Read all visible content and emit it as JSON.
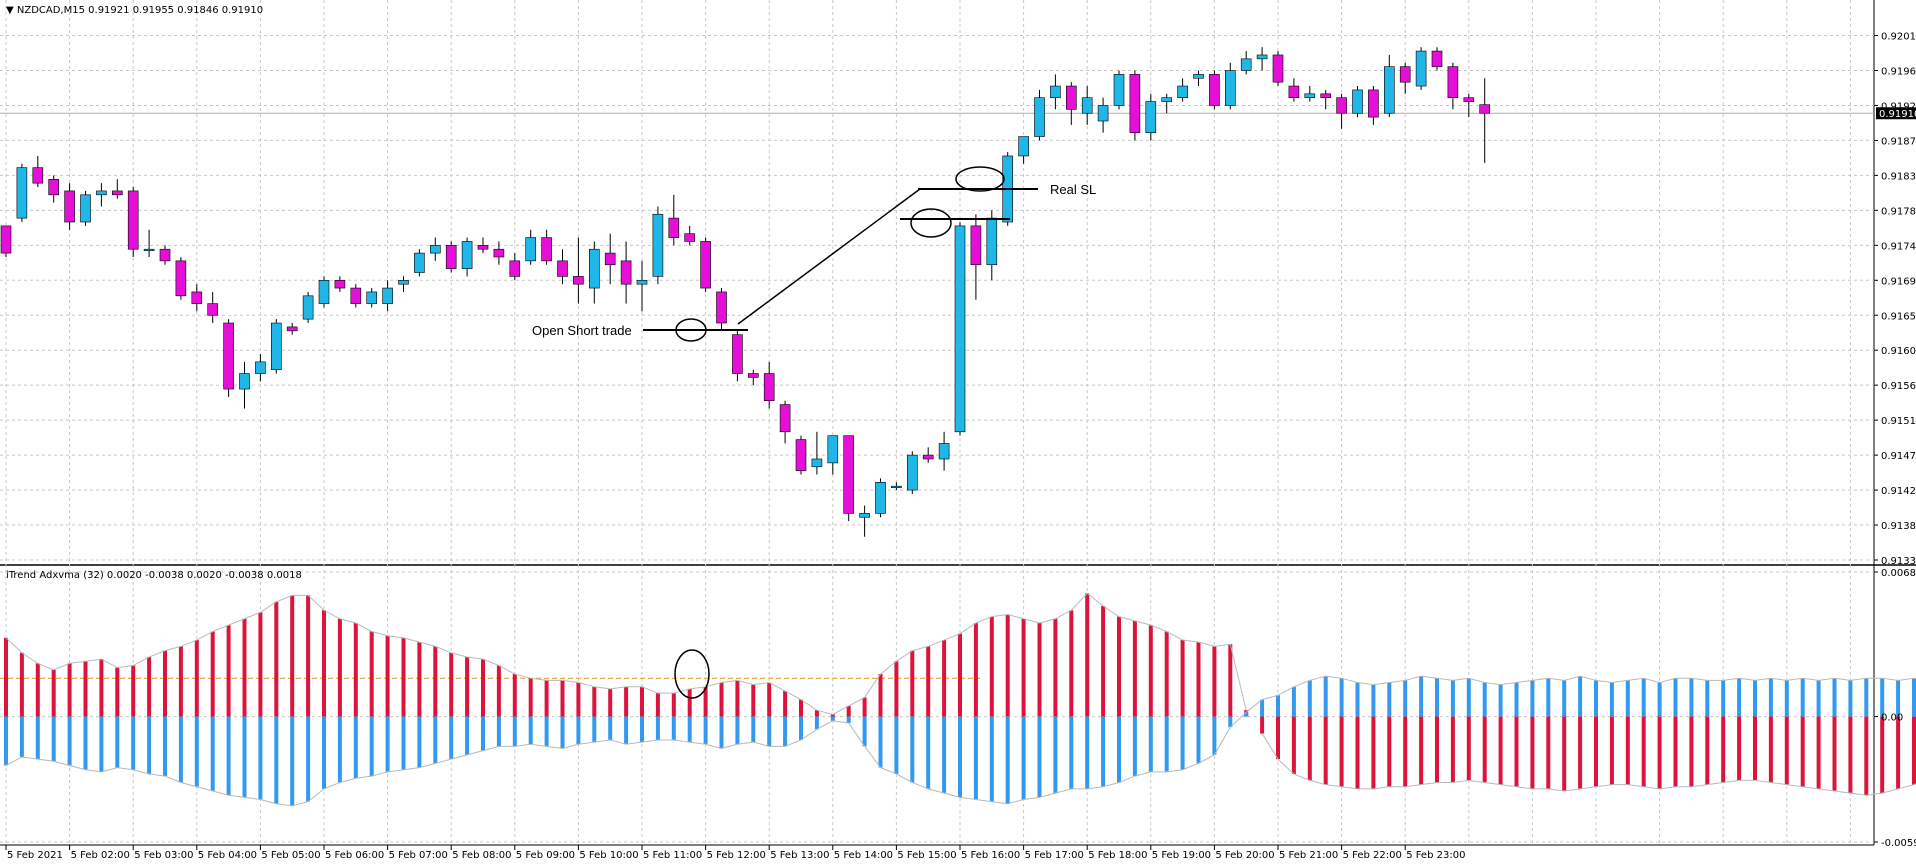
{
  "chart_data": [
    {
      "type": "candlestick",
      "title": "NZDCAD,M15",
      "ohlc_header": "0.91921 0.91955 0.91846 0.91910",
      "ylim": [
        0.91335,
        0.9203
      ],
      "y_ticks": [
        "0.92010",
        "0.91965",
        "0.91920",
        "0.91875",
        "0.91830",
        "0.91785",
        "0.91740",
        "0.91695",
        "0.91650",
        "0.91605",
        "0.91560",
        "0.91515",
        "0.91470",
        "0.91425",
        "0.91380",
        "0.91335"
      ],
      "current_price_label": "0.91910",
      "current_price": 0.9191,
      "x_tick_labels": [
        "5 Feb 2021",
        "5 Feb 02:00",
        "5 Feb 03:00",
        "5 Feb 04:00",
        "5 Feb 05:00",
        "5 Feb 06:00",
        "5 Feb 07:00",
        "5 Feb 08:00",
        "5 Feb 09:00",
        "5 Feb 10:00",
        "5 Feb 11:00",
        "5 Feb 12:00",
        "5 Feb 13:00",
        "5 Feb 14:00",
        "5 Feb 15:00",
        "5 Feb 16:00",
        "5 Feb 17:00",
        "5 Feb 18:00",
        "5 Feb 19:00",
        "5 Feb 20:00",
        "5 Feb 21:00",
        "5 Feb 22:00",
        "5 Feb 23:00"
      ],
      "candles": [
        [
          0.91765,
          0.91765,
          0.91725,
          0.9173
        ],
        [
          0.91775,
          0.91845,
          0.9177,
          0.9184
        ],
        [
          0.9184,
          0.91855,
          0.91815,
          0.9182
        ],
        [
          0.91825,
          0.9183,
          0.91795,
          0.91805
        ],
        [
          0.9181,
          0.9182,
          0.9176,
          0.9177
        ],
        [
          0.9177,
          0.9181,
          0.91765,
          0.91805
        ],
        [
          0.91805,
          0.9182,
          0.9179,
          0.9181
        ],
        [
          0.9181,
          0.91825,
          0.918,
          0.91805
        ],
        [
          0.9181,
          0.91815,
          0.91725,
          0.91735
        ],
        [
          0.91735,
          0.9176,
          0.91725,
          0.91735
        ],
        [
          0.91735,
          0.9174,
          0.91715,
          0.9172
        ],
        [
          0.9172,
          0.91725,
          0.9167,
          0.91675
        ],
        [
          0.9168,
          0.9169,
          0.91655,
          0.91665
        ],
        [
          0.91665,
          0.9168,
          0.9164,
          0.9165
        ],
        [
          0.9164,
          0.91645,
          0.91545,
          0.91555
        ],
        [
          0.91555,
          0.9159,
          0.9153,
          0.91575
        ],
        [
          0.91575,
          0.916,
          0.91565,
          0.9159
        ],
        [
          0.9158,
          0.91645,
          0.91575,
          0.9164
        ],
        [
          0.91635,
          0.9164,
          0.91625,
          0.9163
        ],
        [
          0.91645,
          0.9168,
          0.9164,
          0.91675
        ],
        [
          0.91665,
          0.917,
          0.9166,
          0.91695
        ],
        [
          0.91695,
          0.917,
          0.9168,
          0.91685
        ],
        [
          0.91685,
          0.9169,
          0.9166,
          0.91665
        ],
        [
          0.91665,
          0.91685,
          0.9166,
          0.9168
        ],
        [
          0.91665,
          0.91695,
          0.91655,
          0.91685
        ],
        [
          0.9169,
          0.917,
          0.9168,
          0.91695
        ],
        [
          0.91705,
          0.91735,
          0.917,
          0.9173
        ],
        [
          0.9173,
          0.9175,
          0.9172,
          0.9174
        ],
        [
          0.9174,
          0.91745,
          0.91705,
          0.9171
        ],
        [
          0.9171,
          0.9175,
          0.917,
          0.91745
        ],
        [
          0.9174,
          0.9175,
          0.9173,
          0.91735
        ],
        [
          0.91735,
          0.91745,
          0.91715,
          0.91725
        ],
        [
          0.9172,
          0.9173,
          0.91695,
          0.917
        ],
        [
          0.9172,
          0.9176,
          0.91715,
          0.9175
        ],
        [
          0.9175,
          0.9176,
          0.91715,
          0.9172
        ],
        [
          0.9172,
          0.91735,
          0.9169,
          0.917
        ],
        [
          0.917,
          0.9175,
          0.91665,
          0.9169
        ],
        [
          0.91685,
          0.91745,
          0.91665,
          0.91735
        ],
        [
          0.9173,
          0.91755,
          0.9169,
          0.91715
        ],
        [
          0.9172,
          0.91745,
          0.91665,
          0.9169
        ],
        [
          0.9169,
          0.9172,
          0.91655,
          0.91695
        ],
        [
          0.917,
          0.9179,
          0.9169,
          0.9178
        ],
        [
          0.91775,
          0.91805,
          0.9174,
          0.9175
        ],
        [
          0.91755,
          0.91765,
          0.9174,
          0.91745
        ],
        [
          0.91745,
          0.9175,
          0.9168,
          0.91685
        ],
        [
          0.9168,
          0.91685,
          0.9163,
          0.9164
        ],
        [
          0.91625,
          0.9163,
          0.91565,
          0.91575
        ],
        [
          0.91575,
          0.9158,
          0.9156,
          0.9157
        ],
        [
          0.91575,
          0.9159,
          0.9153,
          0.9154
        ],
        [
          0.91535,
          0.9154,
          0.91485,
          0.915
        ],
        [
          0.9149,
          0.91495,
          0.91445,
          0.9145
        ],
        [
          0.91455,
          0.915,
          0.91445,
          0.91465
        ],
        [
          0.9146,
          0.91495,
          0.91445,
          0.91495
        ],
        [
          0.91495,
          0.91495,
          0.91385,
          0.91395
        ],
        [
          0.9139,
          0.91405,
          0.91365,
          0.91395
        ],
        [
          0.91395,
          0.9144,
          0.9139,
          0.91435
        ],
        [
          0.9143,
          0.91435,
          0.91425,
          0.9143
        ],
        [
          0.91425,
          0.91475,
          0.9142,
          0.9147
        ],
        [
          0.9147,
          0.9148,
          0.9146,
          0.91465
        ],
        [
          0.91465,
          0.915,
          0.9145,
          0.91485
        ],
        [
          0.915,
          0.9177,
          0.91495,
          0.91765
        ],
        [
          0.91765,
          0.9178,
          0.9167,
          0.91715
        ],
        [
          0.91715,
          0.91785,
          0.91695,
          0.91775
        ],
        [
          0.9177,
          0.9186,
          0.91765,
          0.91855
        ],
        [
          0.91855,
          0.9188,
          0.91845,
          0.9188
        ],
        [
          0.9188,
          0.9194,
          0.91875,
          0.9193
        ],
        [
          0.9193,
          0.9196,
          0.91915,
          0.91945
        ],
        [
          0.91945,
          0.9195,
          0.91895,
          0.91915
        ],
        [
          0.9191,
          0.91945,
          0.91895,
          0.9193
        ],
        [
          0.919,
          0.9193,
          0.91885,
          0.9192
        ],
        [
          0.9192,
          0.91965,
          0.91915,
          0.9196
        ],
        [
          0.9196,
          0.91965,
          0.91875,
          0.91885
        ],
        [
          0.91885,
          0.91935,
          0.91875,
          0.91925
        ],
        [
          0.91925,
          0.91935,
          0.9191,
          0.9193
        ],
        [
          0.9193,
          0.91955,
          0.91925,
          0.91945
        ],
        [
          0.91955,
          0.91965,
          0.91945,
          0.9196
        ],
        [
          0.9196,
          0.91965,
          0.91915,
          0.9192
        ],
        [
          0.9192,
          0.91975,
          0.91915,
          0.91965
        ],
        [
          0.91965,
          0.9199,
          0.9196,
          0.9198
        ],
        [
          0.9198,
          0.91995,
          0.91965,
          0.91985
        ],
        [
          0.91985,
          0.9199,
          0.91945,
          0.9195
        ],
        [
          0.91945,
          0.91955,
          0.91925,
          0.9193
        ],
        [
          0.9193,
          0.91945,
          0.91925,
          0.91935
        ],
        [
          0.91935,
          0.9194,
          0.91915,
          0.9193
        ],
        [
          0.9193,
          0.91935,
          0.9189,
          0.9191
        ],
        [
          0.9191,
          0.91945,
          0.91905,
          0.9194
        ],
        [
          0.9194,
          0.91945,
          0.91895,
          0.91905
        ],
        [
          0.9191,
          0.91985,
          0.91905,
          0.9197
        ],
        [
          0.9197,
          0.91975,
          0.91935,
          0.9195
        ],
        [
          0.91945,
          0.91995,
          0.9194,
          0.9199
        ],
        [
          0.9199,
          0.91995,
          0.91965,
          0.9197
        ],
        [
          0.9197,
          0.91975,
          0.91915,
          0.9193
        ],
        [
          0.9193,
          0.91935,
          0.91905,
          0.91925
        ],
        [
          0.91921,
          0.91955,
          0.91846,
          0.9191
        ]
      ],
      "annotations": [
        {
          "text": "Open Short trade"
        },
        {
          "text": "Real SL"
        }
      ]
    },
    {
      "type": "bar",
      "title": "iTrend Adxvma (32) 0.0020 -0.0038 0.0020 -0.0038 0.0018",
      "ylim": [
        -0.0059,
        0.0068
      ],
      "y_ticks": [
        "0.0068",
        "0.00",
        "-0.0059"
      ],
      "signal_level": 0.0018,
      "series": [
        {
          "color": "#dc143c",
          "values": [
            0.0037,
            0.003,
            0.0025,
            0.0022,
            0.0025,
            0.0026,
            0.0027,
            0.0023,
            0.0024,
            0.0028,
            0.0031,
            0.0033,
            0.0036,
            0.004,
            0.0043,
            0.0046,
            0.0049,
            0.0054,
            0.0057,
            0.0057,
            0.005,
            0.0046,
            0.0044,
            0.004,
            0.0038,
            0.0037,
            0.0035,
            0.0033,
            0.003,
            0.0028,
            0.0027,
            0.0024,
            0.002,
            0.0018,
            0.0017,
            0.0017,
            0.0016,
            0.0014,
            0.0013,
            0.0014,
            0.0014,
            0.0011,
            0.0011,
            0.0013,
            0.0014,
            0.0016,
            0.0017,
            0.0015,
            0.0016,
            0.0012,
            0.0008,
            0.0003,
            0.0001,
            0.0005,
            0.0009,
            0.002,
            0.0026,
            0.0031,
            0.0033,
            0.0036,
            0.0039,
            0.0044,
            0.0047,
            0.0048,
            0.0046,
            0.0044,
            0.0046,
            0.005,
            0.0058,
            0.0052,
            0.0047,
            0.0045,
            0.0043,
            0.004,
            0.0036,
            0.0035,
            0.0033,
            0.0034,
            0.0003
          ]
        },
        {
          "color": "#3399ee",
          "values": [
            -0.0023,
            -0.0019,
            -0.002,
            -0.0021,
            -0.0023,
            -0.0025,
            -0.0026,
            -0.0024,
            -0.0025,
            -0.0027,
            -0.0028,
            -0.0031,
            -0.0033,
            -0.0035,
            -0.0037,
            -0.0038,
            -0.0039,
            -0.0041,
            -0.0042,
            -0.004,
            -0.0034,
            -0.0031,
            -0.0029,
            -0.0028,
            -0.0026,
            -0.0025,
            -0.0024,
            -0.0022,
            -0.002,
            -0.0018,
            -0.0016,
            -0.0014,
            -0.0014,
            -0.0013,
            -0.0014,
            -0.0015,
            -0.0013,
            -0.0012,
            -0.0011,
            -0.0013,
            -0.0012,
            -0.0011,
            -0.0011,
            -0.0012,
            -0.0013,
            -0.0015,
            -0.0013,
            -0.0012,
            -0.0014,
            -0.0014,
            -0.0011,
            -0.0006,
            -0.0002,
            -0.0003,
            -0.0014,
            -0.0024,
            -0.0027,
            -0.0031,
            -0.0034,
            -0.0036,
            -0.0038,
            -0.0039,
            -0.004,
            -0.0041,
            -0.0039,
            -0.0038,
            -0.0036,
            -0.0034,
            -0.0034,
            -0.0033,
            -0.0031,
            -0.0028,
            -0.0026,
            -0.0026,
            -0.0025,
            -0.0022,
            -0.0018,
            -0.0005,
            0.0002,
            0.0008,
            0.001,
            0.0014,
            0.0017,
            0.0019,
            0.0018,
            0.0016,
            0.0015,
            0.0016,
            0.0017,
            0.0019,
            0.0018,
            0.0017,
            0.0018,
            0.0016,
            0.0015,
            0.0016,
            0.0017,
            0.0018,
            0.0017,
            0.0019,
            0.0017,
            0.0016,
            0.0017,
            0.0018,
            0.0016,
            0.0018,
            0.0018,
            0.0017,
            0.0017,
            0.0018,
            0.0017,
            0.0018,
            0.0017,
            0.0018,
            0.0017,
            0.0018,
            0.0017,
            0.0018,
            0.0018,
            0.0017,
            0.0018,
            0.0017,
            0.0017,
            0.0018,
            0.0018,
            0.0017,
            0.0018,
            0.0017,
            0.0018
          ]
        }
      ]
    }
  ]
}
